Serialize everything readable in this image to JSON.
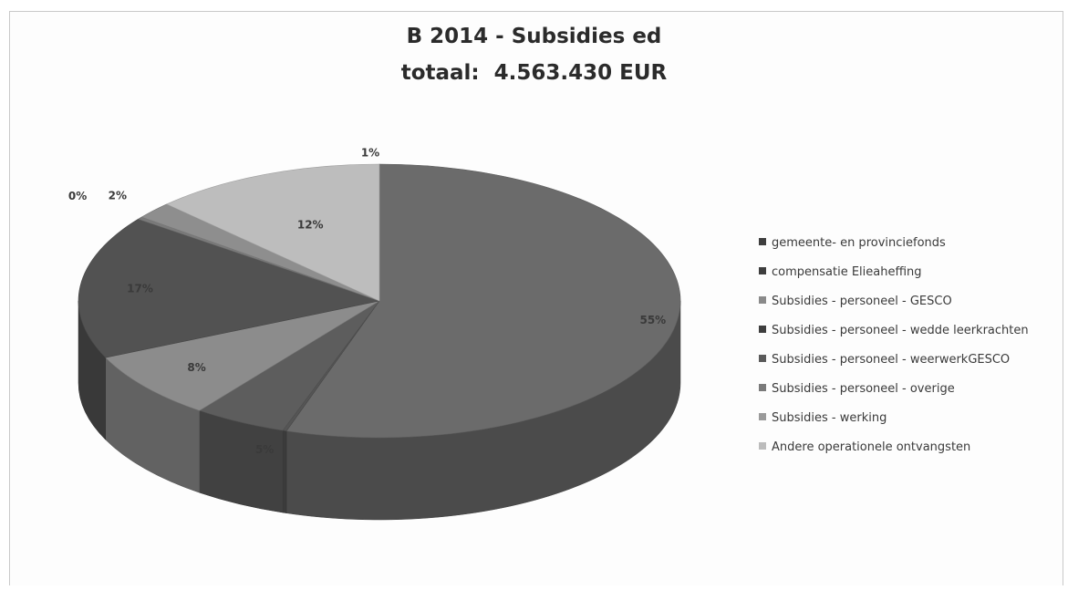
{
  "chart_data": {
    "type": "pie",
    "title_lines": [
      "B 2014 - Subsidies ed",
      "totaal:  4.563.430 EUR"
    ],
    "slices": [
      {
        "label": "gemeente- en provinciefonds",
        "value": 55,
        "display": "55%",
        "color": "#6b6b6b"
      },
      {
        "label": "compensatie Elieaheffing",
        "value": 0.2,
        "display": "",
        "color": "#555555"
      },
      {
        "label": "Subsidies - personeel - GESCO",
        "value": 5,
        "display": "5%",
        "color": "#5d5d5d"
      },
      {
        "label": "Subsidies - personeel - wedde leerkrachten",
        "value": 8,
        "display": "8%",
        "color": "#8c8c8c"
      },
      {
        "label": "Subsidies - personeel - weerwerkGESCO",
        "value": 17,
        "display": "17%",
        "color": "#525252"
      },
      {
        "label": "Subsidies - personeel - overige",
        "value": 0.3,
        "display": "0%",
        "color": "#7a7a7a"
      },
      {
        "label": "Subsidies - werking",
        "value": 2,
        "display": "2%",
        "color": "#8e8e8e"
      },
      {
        "label": "Andere operationele ontvangsten",
        "value": 12.5,
        "display": "12%",
        "color": "#bdbdbd"
      }
    ],
    "extra_labels": [
      {
        "text": "1%"
      }
    ],
    "legend_position": "right"
  },
  "legend_items": [
    {
      "label": "gemeente- en provinciefonds",
      "color": "#3e3e3e"
    },
    {
      "label": "compensatie Elieaheffing",
      "color": "#3e3e3e"
    },
    {
      "label": "Subsidies - personeel - GESCO",
      "color": "#8a8a8a"
    },
    {
      "label": "Subsidies - personeel - wedde leerkrachten",
      "color": "#3e3e3e"
    },
    {
      "label": "Subsidies - personeel - weerwerkGESCO",
      "color": "#5a5a5a"
    },
    {
      "label": "Subsidies - personeel - overige",
      "color": "#7a7a7a"
    },
    {
      "label": "Subsidies - werking",
      "color": "#9a9a9a"
    },
    {
      "label": "Andere operationele ontvangsten",
      "color": "#bcbcbc"
    }
  ]
}
